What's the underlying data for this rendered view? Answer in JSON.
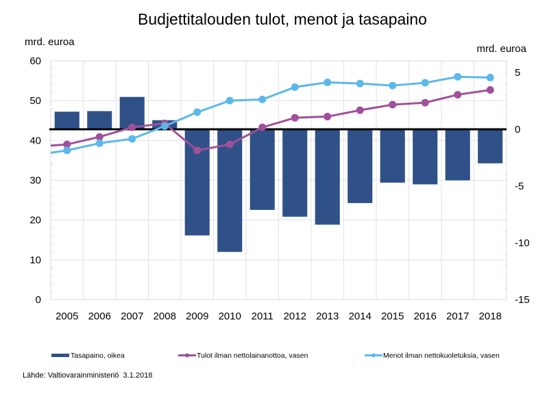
{
  "chart_data": {
    "type": "bar",
    "title": "Budjettitalouden tulot, menot ja tasapaino",
    "left_axis_label": "mrd. euroa",
    "right_axis_label": "mrd. euroa",
    "xlabel": "",
    "categories": [
      "2005",
      "2006",
      "2007",
      "2008",
      "2009",
      "2010",
      "2011",
      "2012",
      "2013",
      "2014",
      "2015",
      "2016",
      "2017",
      "2018"
    ],
    "left_axis": {
      "range": [
        0,
        60
      ],
      "ticks": [
        0,
        10,
        20,
        30,
        40,
        50,
        60
      ],
      "minor_step": 2
    },
    "right_axis": {
      "range": [
        -15,
        5.8
      ],
      "ticks": [
        -15,
        -10,
        -5,
        0,
        5
      ],
      "minor_step": 1
    },
    "grid": true,
    "legend_position": "bottom",
    "series": [
      {
        "name": "Tasapaino, oikea",
        "type": "bar",
        "axis": "right",
        "color": "#2f5188",
        "values": [
          1.55,
          1.6,
          2.85,
          0.8,
          -9.35,
          -10.8,
          -7.1,
          -7.7,
          -8.4,
          -6.5,
          -4.7,
          -4.85,
          -4.5,
          -3.0
        ]
      },
      {
        "name": "Tulot ilman nettolainanottoa, vasen",
        "type": "line",
        "axis": "left",
        "color": "#a0509a",
        "start_value": 38.7,
        "values": [
          39.0,
          40.9,
          43.3,
          44.3,
          37.5,
          39.0,
          43.3,
          45.7,
          46.0,
          47.6,
          49.0,
          49.5,
          51.5,
          52.7
        ]
      },
      {
        "name": "Menot ilman nettokuoletuksia, vasen",
        "type": "line",
        "axis": "left",
        "color": "#5bb8ea",
        "start_value": 36.9,
        "values": [
          37.5,
          39.3,
          40.4,
          43.6,
          47.1,
          50.0,
          50.3,
          53.4,
          54.6,
          54.3,
          53.8,
          54.5,
          56.0,
          55.8
        ]
      }
    ],
    "zero_line": {
      "axis": "right",
      "value": 0,
      "color": "#000000"
    },
    "source": "Lähde: Valtiovarainministeriö  3.1.2018"
  }
}
